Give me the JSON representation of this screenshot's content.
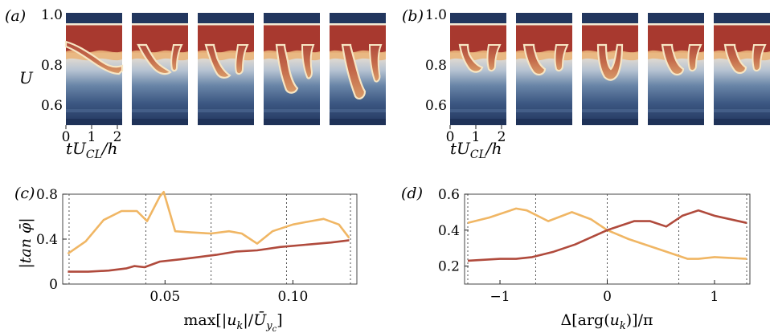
{
  "panel_labels": {
    "a": "(a)",
    "b": "(b)",
    "c": "(c)",
    "d": "(d)"
  },
  "colors": {
    "red": "#b04a3c",
    "orange": "#f0b664",
    "dark_blue": "#22365e",
    "mid_blue": "#4f6f9a",
    "cream": "#f7e6c4"
  },
  "chart_data": [
    {
      "panel": "(a)",
      "type": "heatmap",
      "n_frames": 5,
      "ylabel": "U",
      "yticks": [
        0.6,
        0.8,
        1.0
      ],
      "ylim": [
        0.5,
        1.0
      ],
      "xticks": [
        0,
        1,
        2
      ],
      "xlabel": "tU_CL/h",
      "xlabel_parts": {
        "main": "tU",
        "sub": "CL",
        "tail": "/h"
      }
    },
    {
      "panel": "(b)",
      "type": "heatmap",
      "n_frames": 5,
      "yticks": [
        0.6,
        0.8,
        1.0
      ],
      "ylim": [
        0.5,
        1.0
      ],
      "xticks": [
        0,
        1,
        2
      ],
      "xlabel": "tU_CL/h",
      "xlabel_parts": {
        "main": "tU",
        "sub": "CL",
        "tail": "/h"
      }
    },
    {
      "panel": "(c)",
      "type": "line",
      "ylabel": "|tan φ̄|",
      "xlabel": "max[|u_k|/Ū_yc]",
      "xlabel_parts": {
        "a": "max[|",
        "u": "u",
        "k": "k",
        "mid": "|/",
        "U": "Ū",
        "y": "y",
        "c": "c",
        "end": "]"
      },
      "xlim": [
        0.01,
        0.125
      ],
      "ylim": [
        0,
        0.8
      ],
      "xticks": [
        0.05,
        0.1
      ],
      "xtick_labels": [
        "0.05",
        "0.10"
      ],
      "yticks": [
        0,
        0.4,
        0.8
      ],
      "ytick_labels": [
        "0",
        "0.4",
        "0.8"
      ],
      "vlines": [
        0.0125,
        0.0425,
        0.068,
        0.0975,
        0.1225
      ],
      "series": [
        {
          "color": "#f0b664",
          "x": [
            0.012,
            0.019,
            0.026,
            0.033,
            0.039,
            0.043,
            0.048,
            0.0495,
            0.054,
            0.06,
            0.068,
            0.075,
            0.08,
            0.086,
            0.092,
            0.1,
            0.107,
            0.112,
            0.118,
            0.122
          ],
          "y": [
            0.27,
            0.38,
            0.57,
            0.65,
            0.65,
            0.56,
            0.78,
            0.82,
            0.47,
            0.46,
            0.45,
            0.47,
            0.45,
            0.36,
            0.47,
            0.53,
            0.56,
            0.58,
            0.53,
            0.41
          ]
        },
        {
          "color": "#b04a3c",
          "x": [
            0.012,
            0.02,
            0.028,
            0.035,
            0.038,
            0.042,
            0.048,
            0.056,
            0.063,
            0.07,
            0.078,
            0.086,
            0.095,
            0.105,
            0.115,
            0.122
          ],
          "y": [
            0.11,
            0.11,
            0.12,
            0.14,
            0.16,
            0.15,
            0.2,
            0.22,
            0.24,
            0.26,
            0.29,
            0.3,
            0.33,
            0.35,
            0.37,
            0.39
          ]
        }
      ]
    },
    {
      "panel": "(d)",
      "type": "line",
      "xlabel": "Δ[arg(u_k)]/π",
      "xlabel_parts": {
        "a": "Δ[arg(",
        "u": "u",
        "k": "k",
        "end": ")]/π"
      },
      "xlim": [
        -1.33,
        1.33
      ],
      "ylim": [
        0.1,
        0.6
      ],
      "xticks": [
        -1,
        0,
        1
      ],
      "xtick_labels": [
        "−1",
        "0",
        "1"
      ],
      "yticks": [
        0.2,
        0.4,
        0.6
      ],
      "ytick_labels": [
        "0.2",
        "0.4",
        "0.6"
      ],
      "vlines": [
        -1.3,
        -0.667,
        0,
        0.667,
        1.3
      ],
      "series": [
        {
          "color": "#f0b664",
          "x": [
            -1.3,
            -1.1,
            -0.85,
            -0.75,
            -0.55,
            -0.33,
            -0.15,
            0.0,
            0.2,
            0.5,
            0.75,
            0.85,
            1.0,
            1.3
          ],
          "y": [
            0.44,
            0.47,
            0.52,
            0.51,
            0.45,
            0.5,
            0.46,
            0.4,
            0.35,
            0.29,
            0.24,
            0.24,
            0.25,
            0.24
          ]
        },
        {
          "color": "#b04a3c",
          "x": [
            -1.3,
            -1.0,
            -0.85,
            -0.7,
            -0.5,
            -0.3,
            0.0,
            0.25,
            0.4,
            0.55,
            0.7,
            0.85,
            1.0,
            1.3
          ],
          "y": [
            0.23,
            0.24,
            0.24,
            0.25,
            0.28,
            0.32,
            0.4,
            0.45,
            0.45,
            0.42,
            0.48,
            0.51,
            0.48,
            0.44
          ]
        }
      ]
    }
  ]
}
